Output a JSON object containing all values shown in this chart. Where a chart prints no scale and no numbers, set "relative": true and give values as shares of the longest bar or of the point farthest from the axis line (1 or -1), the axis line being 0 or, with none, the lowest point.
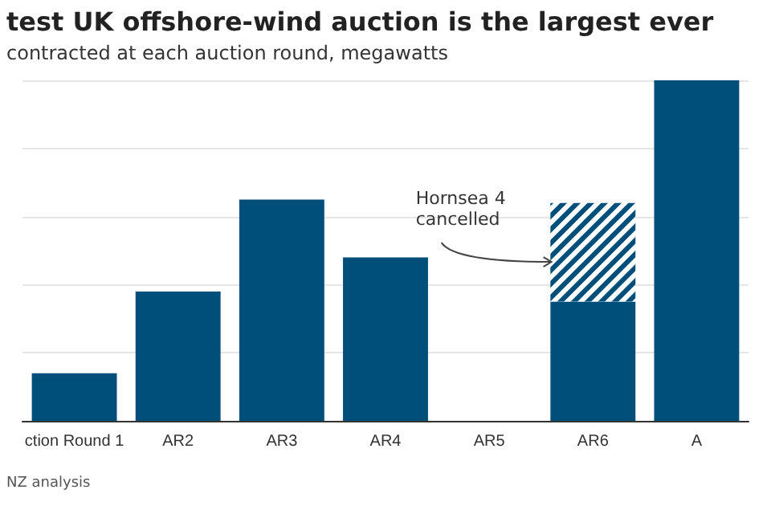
{
  "chart_data": {
    "type": "bar",
    "title": "test UK offshore-wind auction is the largest ever",
    "subtitle": "contracted at each auction round, megawatts",
    "categories": [
      "ction Round 1",
      "AR2",
      "AR3",
      "AR4",
      "AR5",
      "AR6",
      "A"
    ],
    "stacked": true,
    "relative": true,
    "grid": "y",
    "series": [
      {
        "color": "#004f7a",
        "values": [
          0.14,
          0.38,
          0.65,
          0.48,
          0,
          0.35,
          1
        ]
      },
      {
        "color": "#004f7a",
        "values": [
          null,
          null,
          null,
          null,
          null,
          0.29,
          null
        ]
      }
    ],
    "annotations": [
      "Hornsea 4 cancelled",
      "NZ analysis"
    ]
  }
}
